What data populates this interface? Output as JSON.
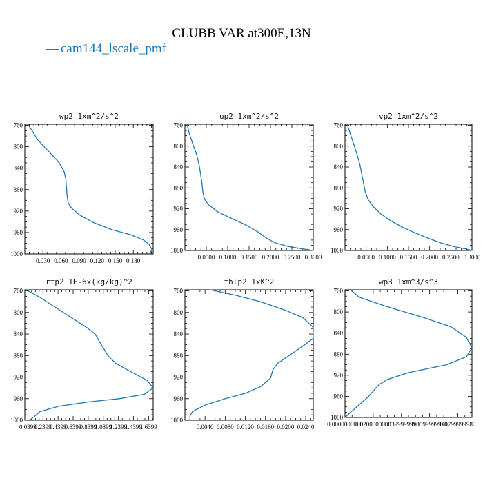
{
  "figure": {
    "title": "CLUBB VAR at300E,13N",
    "legend": [
      {
        "name": "cam144_lscale_pmf",
        "marker": "—",
        "color": "#1f77b4"
      }
    ]
  },
  "chart_data": [
    {
      "type": "line",
      "title": "wp2  1xm^2/s^2",
      "x_label": "",
      "y_label": "",
      "y_axis": "pressure",
      "y_inverted": true,
      "xlim": [
        0.0,
        0.213
      ],
      "ylim": [
        758,
        1000
      ],
      "x_ticks": [
        0.03,
        0.06,
        0.09,
        0.12,
        0.15,
        0.18
      ],
      "x_tick_labels": [
        "0.030",
        "0.060",
        "0.090",
        "0.120",
        "0.150",
        "0.180"
      ],
      "y_ticks": [
        760,
        800,
        840,
        880,
        920,
        960,
        1000
      ],
      "y_tick_labels": [
        "760",
        "800",
        "840",
        "880",
        "920",
        "960",
        "1000"
      ],
      "series": [
        {
          "name": "cam144_lscale_pmf",
          "color": "#1f77b4",
          "x": [
            0.005,
            0.012,
            0.02,
            0.032,
            0.045,
            0.057,
            0.065,
            0.068,
            0.069,
            0.07,
            0.072,
            0.078,
            0.092,
            0.115,
            0.145,
            0.175,
            0.197,
            0.206,
            0.211,
            0.207
          ],
          "y": [
            758,
            770,
            785,
            800,
            815,
            830,
            846,
            860,
            875,
            890,
            905,
            915,
            928,
            942,
            955,
            964,
            974,
            982,
            992,
            1000
          ]
        }
      ]
    },
    {
      "type": "line",
      "title": "up2  1xm^2/s^2",
      "x_label": "",
      "y_label": "",
      "y_axis": "pressure",
      "y_inverted": true,
      "xlim": [
        0.0,
        0.3
      ],
      "ylim": [
        758,
        1000
      ],
      "x_ticks": [
        0.05,
        0.1,
        0.15,
        0.2,
        0.25,
        0.3
      ],
      "x_tick_labels": [
        "0.0500",
        "0.1000",
        "0.1500",
        "0.2000",
        "0.2500",
        "0.3000"
      ],
      "y_ticks": [
        760,
        800,
        840,
        880,
        920,
        960,
        1000
      ],
      "y_tick_labels": [
        "760",
        "800",
        "840",
        "880",
        "920",
        "960",
        "1000"
      ],
      "series": [
        {
          "name": "cam144_lscale_pmf",
          "color": "#1f77b4",
          "x": [
            0.005,
            0.01,
            0.018,
            0.027,
            0.033,
            0.037,
            0.04,
            0.042,
            0.046,
            0.055,
            0.075,
            0.105,
            0.14,
            0.17,
            0.19,
            0.21,
            0.24,
            0.275,
            0.3
          ],
          "y": [
            758,
            775,
            795,
            815,
            835,
            855,
            872,
            888,
            902,
            912,
            925,
            937,
            950,
            964,
            976,
            985,
            992,
            997,
            1000
          ]
        }
      ]
    },
    {
      "type": "line",
      "title": "vp2  1xm^2/s^2",
      "x_label": "",
      "y_label": "",
      "y_axis": "pressure",
      "y_inverted": true,
      "xlim": [
        0.0,
        0.3
      ],
      "ylim": [
        758,
        1000
      ],
      "x_ticks": [
        0.05,
        0.1,
        0.15,
        0.2,
        0.25,
        0.3
      ],
      "x_tick_labels": [
        "0.0500",
        "0.1000",
        "0.1500",
        "0.2000",
        "0.2500",
        "0.3000"
      ],
      "y_ticks": [
        760,
        800,
        840,
        880,
        920,
        960,
        1000
      ],
      "y_tick_labels": [
        "760",
        "800",
        "840",
        "880",
        "920",
        "960",
        "1000"
      ],
      "series": [
        {
          "name": "cam144_lscale_pmf",
          "color": "#1f77b4",
          "x": [
            0.005,
            0.012,
            0.02,
            0.028,
            0.035,
            0.04,
            0.044,
            0.048,
            0.055,
            0.068,
            0.085,
            0.108,
            0.135,
            0.165,
            0.195,
            0.225,
            0.255,
            0.285,
            0.3
          ],
          "y": [
            758,
            775,
            795,
            815,
            835,
            855,
            872,
            888,
            903,
            917,
            930,
            943,
            955,
            966,
            976,
            985,
            992,
            997,
            1000
          ]
        }
      ]
    },
    {
      "type": "line",
      "title": "rtp2  1E-6x(kg/kg)^2",
      "x_label": "",
      "y_label": "",
      "y_axis": "pressure",
      "y_inverted": true,
      "xlim": [
        0.0,
        1.7
      ],
      "ylim": [
        758,
        1000
      ],
      "x_ticks": [
        0.04,
        0.24,
        0.44,
        0.64,
        0.84,
        1.04,
        1.24,
        1.44,
        1.64
      ],
      "x_tick_labels": [
        "0.0399",
        "0.2399",
        "0.4399",
        "0.6399",
        "0.8399",
        "1.0399",
        "1.2399",
        "1.4399",
        "1.6399"
      ],
      "y_ticks": [
        760,
        800,
        840,
        880,
        920,
        960,
        1000
      ],
      "y_tick_labels": [
        "760",
        "800",
        "840",
        "880",
        "920",
        "960",
        "1000"
      ],
      "series": [
        {
          "name": "cam144_lscale_pmf",
          "color": "#1f77b4",
          "x": [
            0.02,
            0.2,
            0.4,
            0.62,
            0.82,
            0.93,
            0.98,
            1.04,
            1.1,
            1.2,
            1.35,
            1.5,
            1.62,
            1.7,
            1.58,
            1.25,
            0.85,
            0.45,
            0.2,
            0.12,
            0.06
          ],
          "y": [
            758,
            772,
            790,
            810,
            828,
            840,
            852,
            866,
            880,
            894,
            906,
            917,
            926,
            940,
            952,
            960,
            966,
            974,
            984,
            994,
            1000
          ]
        }
      ]
    },
    {
      "type": "line",
      "title": "thlp2  1xK^2",
      "x_label": "",
      "y_label": "",
      "y_axis": "pressure",
      "y_inverted": true,
      "xlim": [
        0.0,
        0.0255
      ],
      "ylim": [
        758,
        1000
      ],
      "x_ticks": [
        0.004,
        0.008,
        0.012,
        0.016,
        0.02,
        0.024
      ],
      "x_tick_labels": [
        "0.0040",
        "0.0080",
        "0.0120",
        "0.0160",
        "0.0200",
        "0.0240"
      ],
      "y_ticks": [
        760,
        800,
        840,
        880,
        920,
        960,
        1000
      ],
      "y_tick_labels": [
        "760",
        "800",
        "840",
        "880",
        "920",
        "960",
        "1000"
      ],
      "series": [
        {
          "name": "cam144_lscale_pmf",
          "color": "#1f77b4",
          "x": [
            0.005,
            0.01,
            0.015,
            0.02,
            0.0235,
            0.0255,
            0.0255,
            0.0235,
            0.021,
            0.0185,
            0.0175,
            0.017,
            0.015,
            0.012,
            0.008,
            0.004,
            0.0015,
            0.001,
            0.001
          ],
          "y": [
            758,
            768,
            780,
            796,
            810,
            828,
            848,
            862,
            878,
            894,
            906,
            922,
            938,
            950,
            960,
            972,
            984,
            992,
            1000
          ]
        }
      ]
    },
    {
      "type": "line",
      "title": "wp3  1xm^3/s^3",
      "x_label": "",
      "y_label": "",
      "y_axis": "pressure",
      "y_inverted": true,
      "xlim": [
        0.0,
        0.09
      ],
      "ylim": [
        758,
        1000
      ],
      "x_ticks": [
        0.0,
        0.02,
        0.04,
        0.06,
        0.08
      ],
      "x_tick_labels": [
        "0.0000000000",
        "0.0200000000",
        "0.0399999990",
        "0.0599999990",
        "0.0799999980"
      ],
      "y_ticks": [
        760,
        800,
        840,
        880,
        920,
        960,
        1000
      ],
      "y_tick_labels": [
        "760",
        "800",
        "840",
        "880",
        "920",
        "960",
        "1000"
      ],
      "series": [
        {
          "name": "cam144_lscale_pmf",
          "color": "#1f77b4",
          "x": [
            0.004,
            0.01,
            0.03,
            0.055,
            0.075,
            0.086,
            0.09,
            0.086,
            0.072,
            0.045,
            0.03,
            0.024,
            0.02,
            0.016,
            0.01,
            0.004,
            0.0
          ],
          "y": [
            758,
            772,
            790,
            810,
            828,
            848,
            868,
            885,
            900,
            915,
            928,
            938,
            950,
            962,
            976,
            990,
            1000
          ]
        }
      ]
    }
  ]
}
